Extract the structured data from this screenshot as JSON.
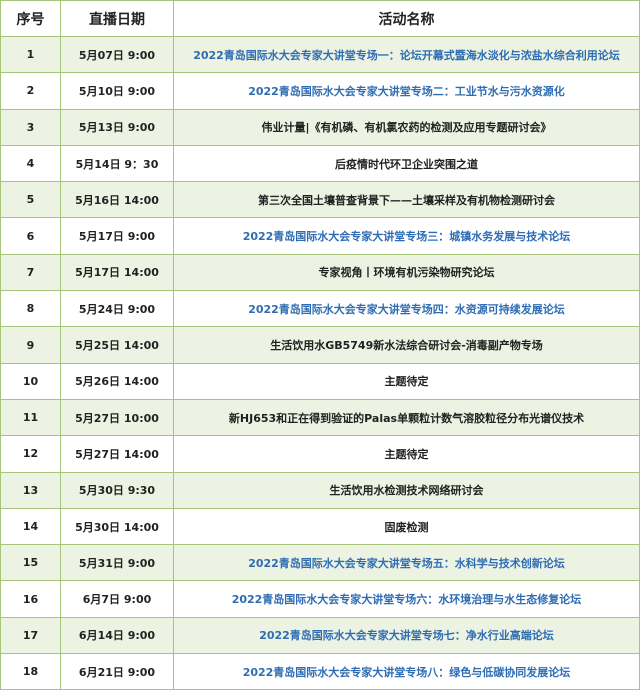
{
  "table": {
    "columns": [
      "序号",
      "直播日期",
      "活动名称"
    ],
    "link_color": "#2e6db4",
    "rows": [
      {
        "no": "1",
        "date": "5月07日 9:00",
        "title": "2022青岛国际水大会专家大讲堂专场一：论坛开幕式暨海水淡化与浓盐水综合利用论坛",
        "link": true
      },
      {
        "no": "2",
        "date": "5月10日 9:00",
        "title": "2022青岛国际水大会专家大讲堂专场二：工业节水与污水资源化",
        "link": true
      },
      {
        "no": "3",
        "date": "5月13日 9:00",
        "title": "伟业计量|《有机磷、有机氯农药的检测及应用专题研讨会》",
        "link": false
      },
      {
        "no": "4",
        "date": "5月14日 9：30",
        "title": "后疫情时代环卫企业突围之道",
        "link": false
      },
      {
        "no": "5",
        "date": "5月16日 14:00",
        "title": "第三次全国土壤普查背景下——土壤采样及有机物检测研讨会",
        "link": false
      },
      {
        "no": "6",
        "date": "5月17日 9:00",
        "title": "2022青岛国际水大会专家大讲堂专场三：城镇水务发展与技术论坛",
        "link": true
      },
      {
        "no": "7",
        "date": "5月17日 14:00",
        "title": "专家视角丨环境有机污染物研究论坛",
        "link": false
      },
      {
        "no": "8",
        "date": "5月24日 9:00",
        "title": "2022青岛国际水大会专家大讲堂专场四：水资源可持续发展论坛",
        "link": true
      },
      {
        "no": "9",
        "date": "5月25日 14:00",
        "title": "生活饮用水GB5749新水法综合研讨会-消毒副产物专场",
        "link": false
      },
      {
        "no": "10",
        "date": "5月26日 14:00",
        "title": "主题待定",
        "link": false
      },
      {
        "no": "11",
        "date": "5月27日 10:00",
        "title": "新HJ653和正在得到验证的Palas单颗粒计数气溶胶粒径分布光谱仪技术",
        "link": false
      },
      {
        "no": "12",
        "date": "5月27日 14:00",
        "title": "主题待定",
        "link": false
      },
      {
        "no": "13",
        "date": "5月30日 9:30",
        "title": "生活饮用水检测技术网络研讨会",
        "link": false
      },
      {
        "no": "14",
        "date": "5月30日 14:00",
        "title": "固废检测",
        "link": false
      },
      {
        "no": "15",
        "date": "5月31日 9:00",
        "title": "2022青岛国际水大会专家大讲堂专场五：水科学与技术创新论坛",
        "link": true
      },
      {
        "no": "16",
        "date": "6月7日 9:00",
        "title": "2022青岛国际水大会专家大讲堂专场六：水环境治理与水生态修复论坛",
        "link": true
      },
      {
        "no": "17",
        "date": "6月14日 9:00",
        "title": "2022青岛国际水大会专家大讲堂专场七：净水行业高端论坛",
        "link": true
      },
      {
        "no": "18",
        "date": "6月21日 9:00",
        "title": "2022青岛国际水大会专家大讲堂专场八：绿色与低碳协同发展论坛",
        "link": true
      }
    ]
  }
}
